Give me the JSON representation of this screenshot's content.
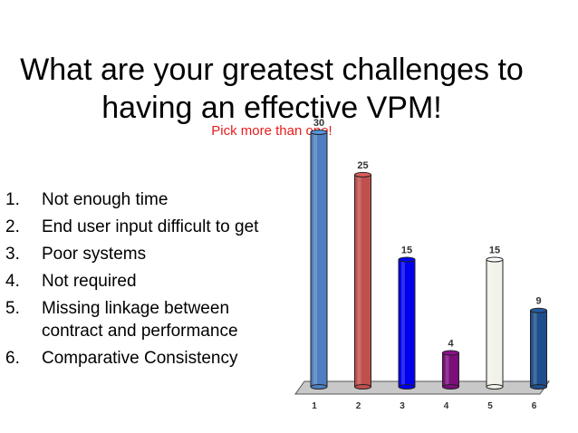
{
  "slide": {
    "title": "What are your greatest challenges to having an effective VPM!",
    "subtitle": "Pick more than one!"
  },
  "options": [
    {
      "num": "1.",
      "text": "Not enough time"
    },
    {
      "num": "2.",
      "text": "End user input difficult to get"
    },
    {
      "num": "3.",
      "text": "Poor systems"
    },
    {
      "num": "4.",
      "text": "Not required"
    },
    {
      "num": "5.",
      "text": "Missing linkage between contract and performance"
    },
    {
      "num": "6.",
      "text": "Comparative Consistency"
    }
  ],
  "chart_data": {
    "type": "bar",
    "categories": [
      "1",
      "2",
      "3",
      "4",
      "5",
      "6"
    ],
    "values": [
      30,
      25,
      15,
      4,
      15,
      9
    ],
    "ylim": [
      0,
      30
    ],
    "grid": false,
    "legend": "none",
    "colors": [
      "#4f7fc0",
      "#c0504d",
      "#0000ee",
      "#7a0f7a",
      "#f2f2ea",
      "#1f4e8c"
    ]
  }
}
